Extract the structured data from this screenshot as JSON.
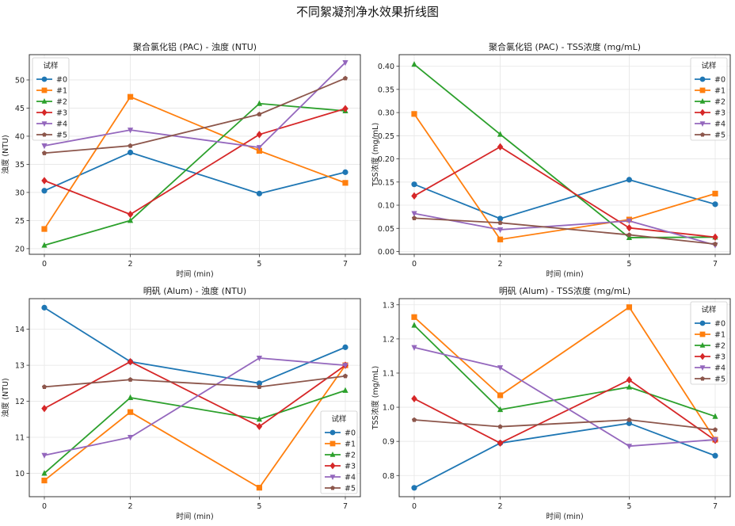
{
  "figure": {
    "suptitle": "不同絮凝剂净水效果折线图"
  },
  "chart_data": [
    {
      "type": "line",
      "title": "聚合氯化铝 (PAC) - 浊度 (NTU)",
      "xlabel": "时间 (min)",
      "ylabel": "浊度 (NTU)",
      "x": [
        0,
        2,
        5,
        7
      ],
      "x_ticks": [
        "0",
        "2",
        "5",
        "7"
      ],
      "ylim": [
        19,
        54.5
      ],
      "y_ticks": [
        20,
        25,
        30,
        35,
        40,
        45,
        50
      ],
      "y_tick_labels": [
        "20",
        "25",
        "30",
        "35",
        "40",
        "45",
        "50"
      ],
      "grid": true,
      "legend": {
        "title": "试样",
        "position": "top-left"
      },
      "series": [
        {
          "name": "#0",
          "values": [
            30.3,
            37.1,
            29.8,
            33.6
          ]
        },
        {
          "name": "#1",
          "values": [
            23.5,
            47.0,
            37.4,
            31.7
          ]
        },
        {
          "name": "#2",
          "values": [
            20.6,
            25.0,
            45.8,
            44.5
          ]
        },
        {
          "name": "#3",
          "values": [
            32.1,
            26.1,
            40.3,
            44.9
          ]
        },
        {
          "name": "#4",
          "values": [
            38.3,
            41.1,
            38.0,
            53.1
          ]
        },
        {
          "name": "#5",
          "values": [
            37.0,
            38.3,
            43.9,
            50.3
          ]
        }
      ]
    },
    {
      "type": "line",
      "title": "聚合氯化铝 (PAC) - TSS浓度 (mg/mL)",
      "xlabel": "时间 (min)",
      "ylabel": "TSS浓度 (mg/mL)",
      "x": [
        0,
        2,
        5,
        7
      ],
      "x_ticks": [
        "0",
        "2",
        "5",
        "7"
      ],
      "ylim": [
        -0.006,
        0.425
      ],
      "y_ticks": [
        0.0,
        0.05,
        0.1,
        0.15,
        0.2,
        0.25,
        0.3,
        0.35,
        0.4
      ],
      "y_tick_labels": [
        "0.00",
        "0.05",
        "0.10",
        "0.15",
        "0.20",
        "0.25",
        "0.30",
        "0.35",
        "0.40"
      ],
      "grid": true,
      "legend": {
        "title": "试样",
        "position": "top-right"
      },
      "series": [
        {
          "name": "#0",
          "values": [
            0.145,
            0.071,
            0.155,
            0.102
          ]
        },
        {
          "name": "#1",
          "values": [
            0.297,
            0.026,
            0.069,
            0.125
          ]
        },
        {
          "name": "#2",
          "values": [
            0.404,
            0.253,
            0.03,
            0.031
          ]
        },
        {
          "name": "#3",
          "values": [
            0.12,
            0.226,
            0.051,
            0.031
          ]
        },
        {
          "name": "#4",
          "values": [
            0.082,
            0.047,
            0.066,
            0.014
          ]
        },
        {
          "name": "#5",
          "values": [
            0.072,
            0.062,
            0.036,
            0.016
          ]
        }
      ]
    },
    {
      "type": "line",
      "title": "明矾 (Alum) - 浊度 (NTU)",
      "xlabel": "时间 (min)",
      "ylabel": "浊度 (NTU)",
      "x": [
        0,
        2,
        5,
        7
      ],
      "x_ticks": [
        "0",
        "2",
        "5",
        "7"
      ],
      "ylim": [
        9.35,
        14.85
      ],
      "y_ticks": [
        10,
        11,
        12,
        13,
        14
      ],
      "y_tick_labels": [
        "10",
        "11",
        "12",
        "13",
        "14"
      ],
      "grid": true,
      "legend": {
        "title": "试样",
        "position": "bottom-right"
      },
      "series": [
        {
          "name": "#0",
          "values": [
            14.6,
            13.1,
            12.5,
            13.5
          ]
        },
        {
          "name": "#1",
          "values": [
            9.8,
            11.7,
            9.6,
            13.0
          ]
        },
        {
          "name": "#2",
          "values": [
            10.0,
            12.1,
            11.5,
            12.3
          ]
        },
        {
          "name": "#3",
          "values": [
            11.8,
            13.1,
            11.3,
            13.0
          ]
        },
        {
          "name": "#4",
          "values": [
            10.5,
            11.0,
            13.2,
            13.0
          ]
        },
        {
          "name": "#5",
          "values": [
            12.4,
            12.6,
            12.4,
            12.7
          ]
        }
      ]
    },
    {
      "type": "line",
      "title": "明矾 (Alum) - TSS浓度 (mg/mL)",
      "xlabel": "时间 (min)",
      "ylabel": "TSS浓度 (mg/mL)",
      "x": [
        0,
        2,
        5,
        7
      ],
      "x_ticks": [
        "0",
        "2",
        "5",
        "7"
      ],
      "ylim": [
        0.738,
        1.318
      ],
      "y_ticks": [
        0.8,
        0.9,
        1.0,
        1.1,
        1.2,
        1.3
      ],
      "y_tick_labels": [
        "0.8",
        "0.9",
        "1.0",
        "1.1",
        "1.2",
        "1.3"
      ],
      "grid": true,
      "legend": {
        "title": "试样",
        "position": "top-right"
      },
      "series": [
        {
          "name": "#0",
          "values": [
            0.764,
            0.895,
            0.953,
            0.858
          ]
        },
        {
          "name": "#1",
          "values": [
            1.264,
            1.035,
            1.293,
            0.905
          ]
        },
        {
          "name": "#2",
          "values": [
            1.24,
            0.993,
            1.059,
            0.973
          ]
        },
        {
          "name": "#3",
          "values": [
            1.025,
            0.895,
            1.08,
            0.903
          ]
        },
        {
          "name": "#4",
          "values": [
            1.175,
            1.116,
            0.886,
            0.905
          ]
        },
        {
          "name": "#5",
          "values": [
            0.963,
            0.943,
            0.963,
            0.934
          ]
        }
      ]
    }
  ],
  "series_style": {
    "colors": [
      "#1f77b4",
      "#ff7f0e",
      "#2ca02c",
      "#d62728",
      "#9467bd",
      "#8c564b"
    ],
    "markers": [
      "circle",
      "square",
      "triangle-up",
      "diamond",
      "triangle-down",
      "pentagon-small"
    ]
  }
}
